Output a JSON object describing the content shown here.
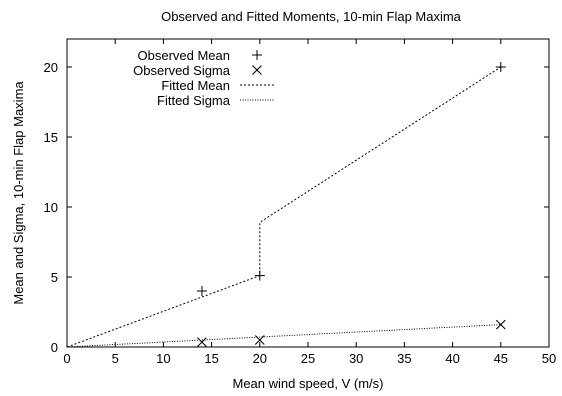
{
  "chart_data": {
    "type": "line",
    "title": "Observed and Fitted Moments, 10-min Flap Maxima",
    "xlabel": "Mean wind speed, V (m/s)",
    "ylabel": "Mean and Sigma, 10-min Flap Maxima",
    "xlim": [
      0,
      50
    ],
    "ylim": [
      0,
      22
    ],
    "xticks": [
      0,
      5,
      10,
      15,
      20,
      25,
      30,
      35,
      40,
      45,
      50
    ],
    "yticks": [
      0,
      5,
      10,
      15,
      20
    ],
    "grid": false,
    "legend_position": "top-left",
    "series": [
      {
        "name": "Observed Mean",
        "style": "plus-marker",
        "x": [
          14,
          20,
          45
        ],
        "y": [
          4.0,
          5.1,
          20.0
        ]
      },
      {
        "name": "Observed Sigma",
        "style": "cross-marker",
        "x": [
          14,
          20,
          45
        ],
        "y": [
          0.35,
          0.5,
          1.6
        ]
      },
      {
        "name": "Fitted Mean",
        "style": "dotted-line",
        "x": [
          0,
          20,
          20,
          45
        ],
        "y": [
          0,
          5.1,
          8.9,
          20.0
        ]
      },
      {
        "name": "Fitted Sigma",
        "style": "fine-dotted-line",
        "x": [
          0,
          45
        ],
        "y": [
          0,
          1.6
        ]
      }
    ]
  }
}
